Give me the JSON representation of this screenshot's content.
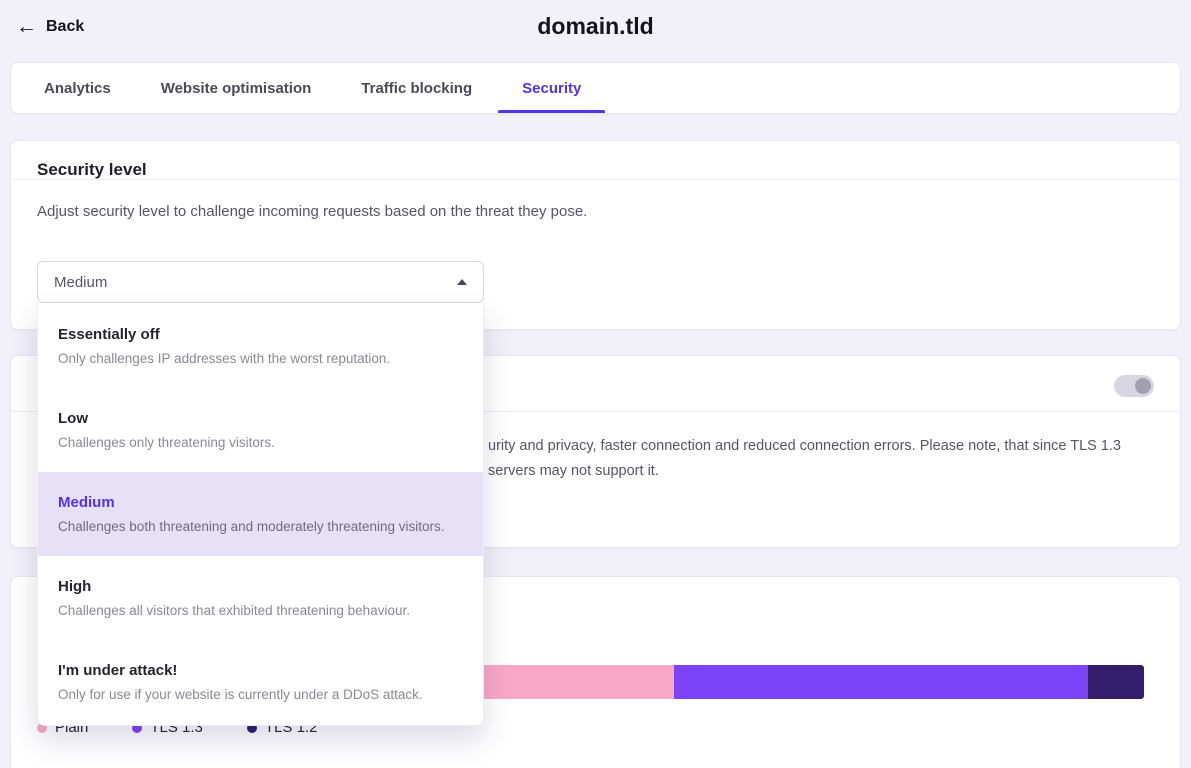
{
  "colors": {
    "accent": "#5333ed",
    "page_bg": "#f2f0f8",
    "dropdown_highlight": "#e7e1f8"
  },
  "header": {
    "back_label": "Back",
    "back_icon": "left-arrow-icon",
    "title": "domain.tld"
  },
  "tabs": [
    {
      "label": "Analytics",
      "active": false
    },
    {
      "label": "Website optimisation",
      "active": false
    },
    {
      "label": "Traffic blocking",
      "active": false
    },
    {
      "label": "Security",
      "active": true
    }
  ],
  "security_level": {
    "title": "Security level",
    "description": "Adjust security level to challenge incoming requests based on the threat they pose.",
    "selected_value": "Medium",
    "dropdown_open": true,
    "options": [
      {
        "title": "Essentially off",
        "description": "Only challenges IP addresses with the worst reputation.",
        "selected": false
      },
      {
        "title": "Low",
        "description": "Challenges only threatening visitors.",
        "selected": false
      },
      {
        "title": "Medium",
        "description": "Challenges both threatening and moderately threatening visitors.",
        "selected": true
      },
      {
        "title": "High",
        "description": "Challenges all visitors that exhibited threatening behaviour.",
        "selected": false
      },
      {
        "title": "I'm under attack!",
        "description": "Only for use if your website is currently under a DDoS attack.",
        "selected": false
      }
    ]
  },
  "tls_card": {
    "toggle_state": "off",
    "visible_text_line1": "urity and privacy, faster connection and reduced connection errors. Please note, that since TLS 1.3",
    "visible_text_line2": "servers may not support it."
  },
  "chart_data": {
    "type": "bar",
    "variant": "stacked-horizontal-single-bar",
    "segments": [
      {
        "label": "Plain",
        "percent": 57.5,
        "color": "#f9a8c7"
      },
      {
        "label": "TLS 1.3",
        "percent": 37.4,
        "color": "#7c44f7"
      },
      {
        "label": "TLS 1.2",
        "percent": 5.1,
        "color": "#321e6b"
      }
    ],
    "legend": [
      "Plain",
      "TLS 1.3",
      "TLS 1.2"
    ],
    "legend_position": "bottom",
    "axis_labels_visible": false
  }
}
